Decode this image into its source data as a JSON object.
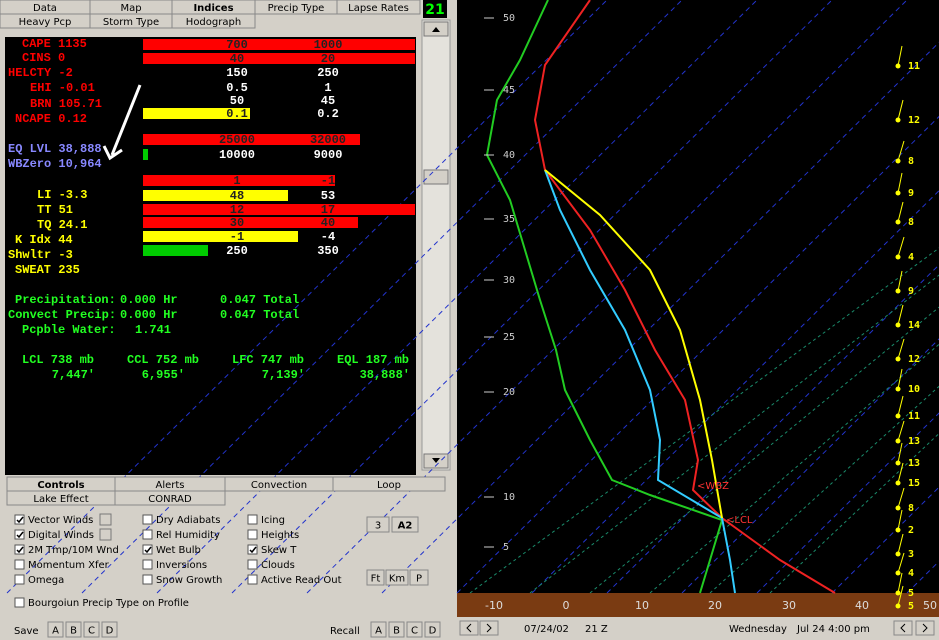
{
  "top_tabs": [
    "Data",
    "Map",
    "Indices",
    "Precip Type",
    "Lapse Rates",
    "Heavy Pcp",
    "Storm Type",
    "Hodograph"
  ],
  "frame_number": "21",
  "index_labels": [
    "CAPE 1135",
    "CINS 0",
    "HELCTY -2",
    "EHI -0.01",
    "BRN 105.71",
    "NCAPE 0.12",
    "EQ LVL 38,888",
    "WBZero 10,964",
    "LI -3.3",
    "TT 51",
    "TQ 24.1",
    "K Idx 44",
    "Shwltr -3",
    "SWEAT 235"
  ],
  "threshold_rows": [
    [
      "700",
      "1000"
    ],
    [
      "40",
      "20"
    ],
    [
      "150",
      "250"
    ],
    [
      "0.5",
      "1"
    ],
    [
      "50",
      "45"
    ],
    [
      "0.1",
      "0.2"
    ],
    [
      "25000",
      "32000"
    ],
    [
      "10000",
      "9000"
    ],
    [
      "1",
      "-1"
    ],
    [
      "48",
      "53"
    ],
    [
      "12",
      "17"
    ],
    [
      "30",
      "40"
    ],
    [
      "-1",
      "-4"
    ],
    [
      "250",
      "350"
    ]
  ],
  "precip_lines": [
    [
      "Precipitation:",
      "0.000 Hr",
      "0.047 Total"
    ],
    [
      "Convect Precip:",
      "0.000 Hr",
      "0.047 Total"
    ],
    [
      "Pcpble Water:",
      "1.741"
    ]
  ],
  "levels": [
    [
      "LCL 738 mb",
      "7,447'"
    ],
    [
      "CCL 752 mb",
      "6,955'"
    ],
    [
      "LFC 747 mb",
      "7,139'"
    ],
    [
      "EQL 187 mb",
      "38,888'"
    ]
  ],
  "bottom_tabs": [
    "Controls",
    "Alerts",
    "Convection",
    "Loop",
    "Lake Effect",
    "CONRAD"
  ],
  "options": [
    [
      {
        "label": "Vector Winds",
        "checked": true
      },
      {
        "label": "Digital Winds",
        "checked": true
      },
      {
        "label": "2M Tmp/10M Wnd",
        "checked": true
      },
      {
        "label": "Momentum Xfer",
        "checked": false
      },
      {
        "label": "Omega",
        "checked": false
      }
    ],
    [
      {
        "label": "Dry Adiabats",
        "checked": false
      },
      {
        "label": "Rel Humidity",
        "checked": false
      },
      {
        "label": "Wet Bulb",
        "checked": true
      },
      {
        "label": "Inversions",
        "checked": false
      },
      {
        "label": "Snow Growth",
        "checked": false
      }
    ],
    [
      {
        "label": "Icing",
        "checked": false
      },
      {
        "label": "Heights",
        "checked": false
      },
      {
        "label": "Skew T",
        "checked": true
      },
      {
        "label": "Clouds",
        "checked": false
      },
      {
        "label": "Active Read Out",
        "checked": false
      }
    ]
  ],
  "scale_buttons": [
    "3",
    "A2",
    "Ft",
    "Km",
    "P"
  ],
  "bourgoiun_option": {
    "label": "Bourgoiun Precip Type on Profile",
    "checked": false
  },
  "save_label": "Save",
  "recall_label": "Recall",
  "slot_buttons": [
    "A",
    "B",
    "C",
    "D"
  ],
  "height_labels": [
    "50",
    "45",
    "40",
    "35",
    "30",
    "25",
    "20",
    "10",
    "5"
  ],
  "temp_labels": [
    "-10",
    "0",
    "10",
    "20",
    "30",
    "40",
    "50"
  ],
  "wind_speeds": [
    "11",
    "12",
    "8",
    "9",
    "8",
    "4",
    "9",
    "14",
    "12",
    "10",
    "11",
    "13",
    "13",
    "15",
    "8",
    "2",
    "3",
    "4",
    "5",
    "5"
  ],
  "markers": [
    "<WBZ",
    "<LCL"
  ],
  "status": {
    "date": "07/24/02",
    "time": "21 Z",
    "day": "Wednesday",
    "datetime": "Jul 24  4:00 pm"
  }
}
